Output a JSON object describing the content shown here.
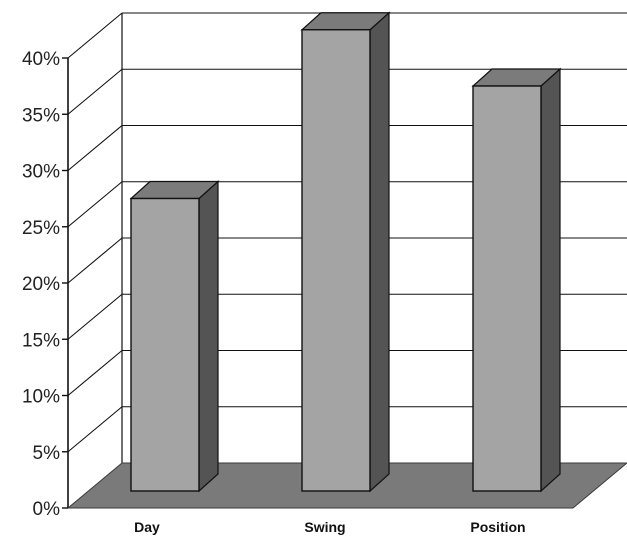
{
  "chart_data": {
    "type": "bar",
    "style": "3d-column",
    "categories": [
      "Day",
      "Swing",
      "Position"
    ],
    "values": [
      26,
      41,
      36
    ],
    "y_tick_labels": [
      "0%",
      "5%",
      "10%",
      "15%",
      "20%",
      "25%",
      "30%",
      "35%",
      "40%"
    ],
    "ylim": [
      0,
      40
    ],
    "y_unit": "%",
    "grid": true,
    "legend": "none",
    "colors": {
      "bar_front": "#a4a4a4",
      "bar_top": "#7b7b7b",
      "bar_side": "#545454",
      "floor": "#7a7a7a",
      "grid": "#111111"
    }
  }
}
